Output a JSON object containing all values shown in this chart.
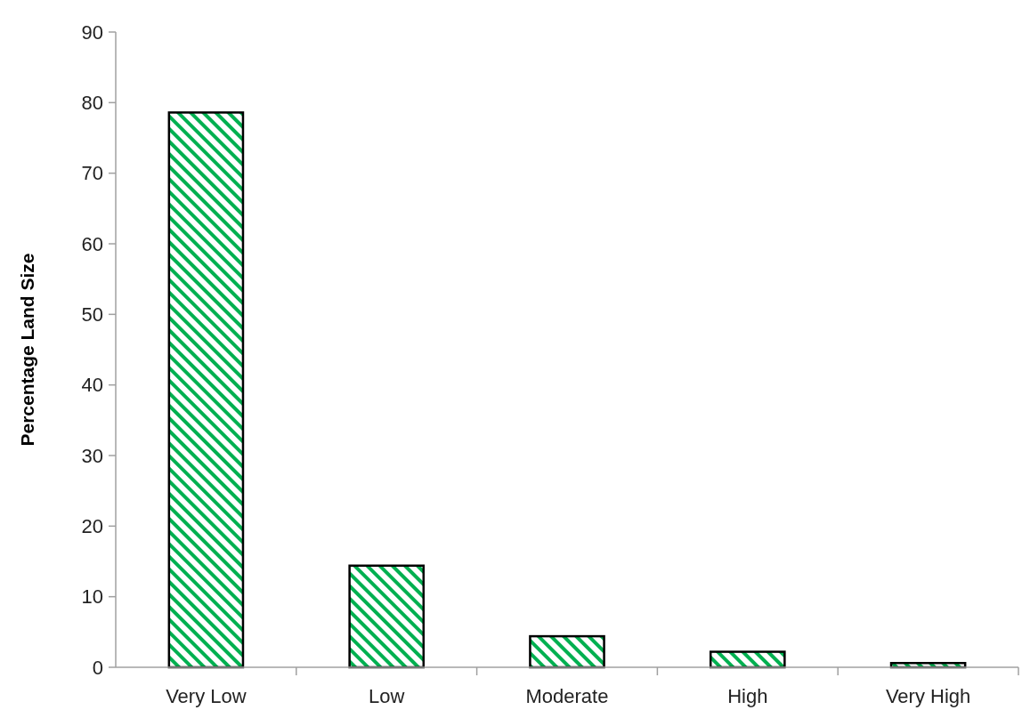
{
  "chart_data": {
    "type": "bar",
    "ylabel": "Percentage Land Size",
    "categories": [
      "Very Low",
      "Low",
      "Moderate",
      "High",
      "Very High"
    ],
    "values": [
      78.6,
      14.4,
      4.4,
      2.2,
      0.6
    ],
    "color": "#00b050",
    "ylim": [
      0,
      90
    ],
    "yticks": [
      0,
      10,
      20,
      30,
      40,
      50,
      60,
      70,
      80,
      90
    ],
    "grid": false
  }
}
